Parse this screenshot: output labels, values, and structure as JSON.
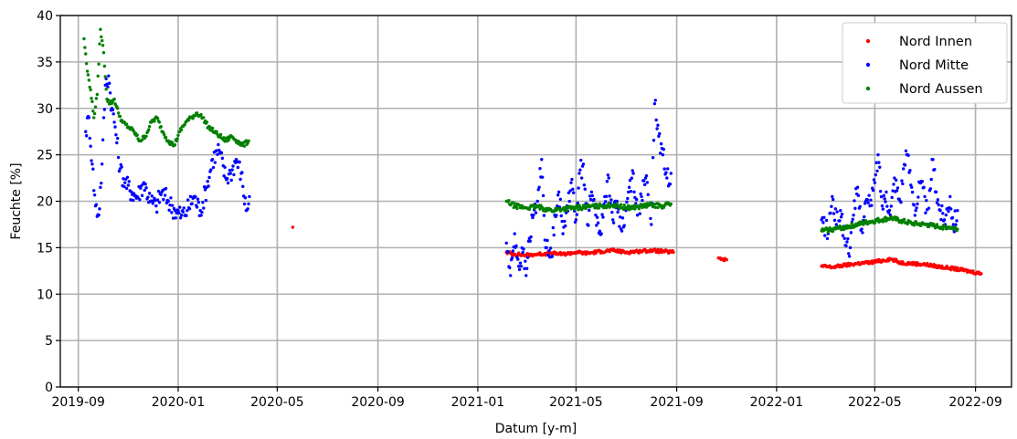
{
  "chart_data": {
    "type": "scatter",
    "title": "",
    "xlabel": "Datum [y-m]",
    "ylabel": "Feuchte [%]",
    "x_type": "date",
    "xlim": [
      "2019-08-10",
      "2022-10-15"
    ],
    "ylim": [
      0,
      40
    ],
    "yticks": [
      0,
      5,
      10,
      15,
      20,
      25,
      30,
      35,
      40
    ],
    "xticks": [
      "2019-09",
      "2020-01",
      "2020-05",
      "2020-09",
      "2021-01",
      "2021-05",
      "2021-09",
      "2022-01",
      "2022-05",
      "2022-09"
    ],
    "grid": true,
    "legend_position": "top-right",
    "series": [
      {
        "name": "Nord Innen",
        "color": "#ff0000",
        "segments": [
          {
            "x": [
              "2020-05-20"
            ],
            "y": [
              17.2
            ]
          },
          {
            "x": [
              "2021-02-05",
              "2021-02-15",
              "2021-03-01",
              "2021-03-15",
              "2021-04-01",
              "2021-04-15",
              "2021-05-01",
              "2021-05-15",
              "2021-06-01",
              "2021-06-15",
              "2021-07-01",
              "2021-07-15",
              "2021-08-01",
              "2021-08-15",
              "2021-08-28"
            ],
            "y": [
              14.5,
              14.3,
              14.2,
              14.3,
              14.4,
              14.3,
              14.5,
              14.4,
              14.6,
              14.7,
              14.5,
              14.6,
              14.7,
              14.6,
              14.5
            ]
          },
          {
            "x": [
              "2021-10-22",
              "2021-10-27",
              "2021-11-01"
            ],
            "y": [
              13.9,
              13.8,
              13.7
            ]
          },
          {
            "x": [
              "2022-02-25",
              "2022-03-10",
              "2022-03-25",
              "2022-04-10",
              "2022-04-25",
              "2022-05-10",
              "2022-05-20",
              "2022-06-01",
              "2022-06-15",
              "2022-07-01",
              "2022-07-15",
              "2022-08-01",
              "2022-08-15",
              "2022-08-28",
              "2022-09-08"
            ],
            "y": [
              13.0,
              12.9,
              13.1,
              13.3,
              13.4,
              13.6,
              13.8,
              13.4,
              13.3,
              13.2,
              13.0,
              12.8,
              12.6,
              12.4,
              12.2
            ]
          }
        ]
      },
      {
        "name": "Nord Mitte",
        "color": "#0000ff",
        "segments": [
          {
            "x": [
              "2019-09-10",
              "2019-09-14",
              "2019-09-18",
              "2019-09-22",
              "2019-09-26",
              "2019-09-30",
              "2019-10-04",
              "2019-10-08",
              "2019-10-12",
              "2019-10-16",
              "2019-10-22",
              "2019-10-28",
              "2019-11-05",
              "2019-11-12",
              "2019-11-20",
              "2019-11-28",
              "2019-12-05",
              "2019-12-12",
              "2019-12-20",
              "2019-12-28",
              "2020-01-05",
              "2020-01-12",
              "2020-01-20",
              "2020-01-28",
              "2020-02-05",
              "2020-02-12",
              "2020-02-20",
              "2020-02-28",
              "2020-03-05",
              "2020-03-12",
              "2020-03-18",
              "2020-03-24",
              "2020-03-28"
            ],
            "y": [
              27.5,
              29.0,
              24.0,
              19.5,
              18.5,
              24.0,
              32.5,
              33.5,
              30.0,
              28.0,
              23.5,
              22.0,
              21.0,
              20.5,
              22.0,
              20.0,
              19.5,
              21.0,
              20.0,
              19.0,
              18.5,
              19.0,
              20.5,
              19.0,
              21.5,
              24.5,
              25.5,
              22.5,
              23.0,
              24.5,
              23.0,
              19.0,
              20.5
            ]
          },
          {
            "x": [
              "2021-02-05",
              "2021-02-10",
              "2021-02-15",
              "2021-02-20",
              "2021-02-25",
              "2021-03-01",
              "2021-03-05",
              "2021-03-10",
              "2021-03-15",
              "2021-03-20",
              "2021-03-25",
              "2021-04-01",
              "2021-04-05",
              "2021-04-10",
              "2021-04-15",
              "2021-04-20",
              "2021-04-25",
              "2021-05-01",
              "2021-05-05",
              "2021-05-10",
              "2021-05-15",
              "2021-05-20",
              "2021-05-25",
              "2021-06-01",
              "2021-06-05",
              "2021-06-10",
              "2021-06-15",
              "2021-06-20",
              "2021-06-25",
              "2021-07-01",
              "2021-07-05",
              "2021-07-10",
              "2021-07-15",
              "2021-07-20",
              "2021-07-25",
              "2021-08-01",
              "2021-08-05",
              "2021-08-10",
              "2021-08-15",
              "2021-08-20",
              "2021-08-25"
            ],
            "y": [
              15.5,
              12.0,
              16.5,
              13.0,
              14.5,
              12.0,
              16.0,
              18.5,
              20.0,
              24.5,
              15.0,
              14.0,
              18.5,
              21.0,
              16.5,
              19.5,
              22.0,
              18.0,
              23.0,
              24.0,
              17.5,
              21.0,
              18.5,
              16.5,
              20.5,
              22.5,
              18.0,
              20.0,
              17.0,
              19.0,
              21.5,
              23.0,
              18.5,
              20.5,
              22.5,
              17.5,
              30.5,
              27.0,
              25.0,
              22.5,
              23.0
            ]
          },
          {
            "x": [
              "2022-02-25",
              "2022-03-05",
              "2022-03-10",
              "2022-03-15",
              "2022-03-20",
              "2022-03-25",
              "2022-04-01",
              "2022-04-05",
              "2022-04-10",
              "2022-04-15",
              "2022-04-20",
              "2022-04-25",
              "2022-05-01",
              "2022-05-05",
              "2022-05-10",
              "2022-05-15",
              "2022-05-20",
              "2022-05-25",
              "2022-06-01",
              "2022-06-05",
              "2022-06-10",
              "2022-06-15",
              "2022-06-20",
              "2022-06-25",
              "2022-07-01",
              "2022-07-05",
              "2022-07-10",
              "2022-07-15",
              "2022-07-20",
              "2022-07-25",
              "2022-08-01",
              "2022-08-05",
              "2022-08-10"
            ],
            "y": [
              18.0,
              16.5,
              20.5,
              17.5,
              19.0,
              16.0,
              15.0,
              18.5,
              21.5,
              17.0,
              20.0,
              19.5,
              22.0,
              25.0,
              19.5,
              21.0,
              18.5,
              22.5,
              20.0,
              23.5,
              25.0,
              21.5,
              19.0,
              22.0,
              20.5,
              17.5,
              24.5,
              21.0,
              19.0,
              18.0,
              20.5,
              17.5,
              19.0
            ]
          }
        ]
      },
      {
        "name": "Nord Aussen",
        "color": "#008000",
        "segments": [
          {
            "x": [
              "2019-09-08",
              "2019-09-12",
              "2019-09-16",
              "2019-09-20",
              "2019-09-24",
              "2019-09-28",
              "2019-10-02",
              "2019-10-06",
              "2019-10-10",
              "2019-10-15",
              "2019-10-20",
              "2019-10-25",
              "2019-11-01",
              "2019-11-08",
              "2019-11-15",
              "2019-11-22",
              "2019-11-29",
              "2019-12-06",
              "2019-12-13",
              "2019-12-20",
              "2019-12-27",
              "2020-01-03",
              "2020-01-10",
              "2020-01-17",
              "2020-01-24",
              "2020-01-31",
              "2020-02-07",
              "2020-02-14",
              "2020-02-21",
              "2020-02-28",
              "2020-03-06",
              "2020-03-13",
              "2020-03-20",
              "2020-03-27"
            ],
            "y": [
              37.5,
              34.0,
              32.0,
              29.0,
              31.5,
              38.5,
              36.0,
              31.0,
              30.5,
              31.0,
              29.5,
              28.5,
              28.0,
              27.5,
              26.5,
              27.0,
              28.5,
              29.0,
              27.5,
              26.5,
              26.0,
              27.5,
              28.5,
              29.0,
              29.5,
              29.0,
              28.0,
              27.5,
              27.0,
              26.5,
              27.0,
              26.5,
              26.0,
              26.5
            ]
          },
          {
            "x": [
              "2021-02-05",
              "2021-02-15",
              "2021-03-01",
              "2021-03-15",
              "2021-04-01",
              "2021-04-15",
              "2021-05-01",
              "2021-05-15",
              "2021-06-01",
              "2021-06-15",
              "2021-07-01",
              "2021-07-15",
              "2021-08-01",
              "2021-08-15",
              "2021-08-25"
            ],
            "y": [
              20.0,
              19.5,
              19.3,
              19.4,
              19.0,
              19.2,
              19.3,
              19.4,
              19.5,
              19.6,
              19.3,
              19.4,
              19.6,
              19.5,
              19.7
            ]
          },
          {
            "x": [
              "2022-02-25",
              "2022-03-10",
              "2022-03-25",
              "2022-04-10",
              "2022-04-25",
              "2022-05-10",
              "2022-05-20",
              "2022-06-01",
              "2022-06-15",
              "2022-07-01",
              "2022-07-15",
              "2022-08-01",
              "2022-08-10"
            ],
            "y": [
              16.8,
              17.0,
              17.2,
              17.5,
              17.8,
              18.0,
              18.2,
              17.9,
              17.6,
              17.5,
              17.3,
              17.2,
              17.0
            ]
          }
        ]
      }
    ]
  }
}
